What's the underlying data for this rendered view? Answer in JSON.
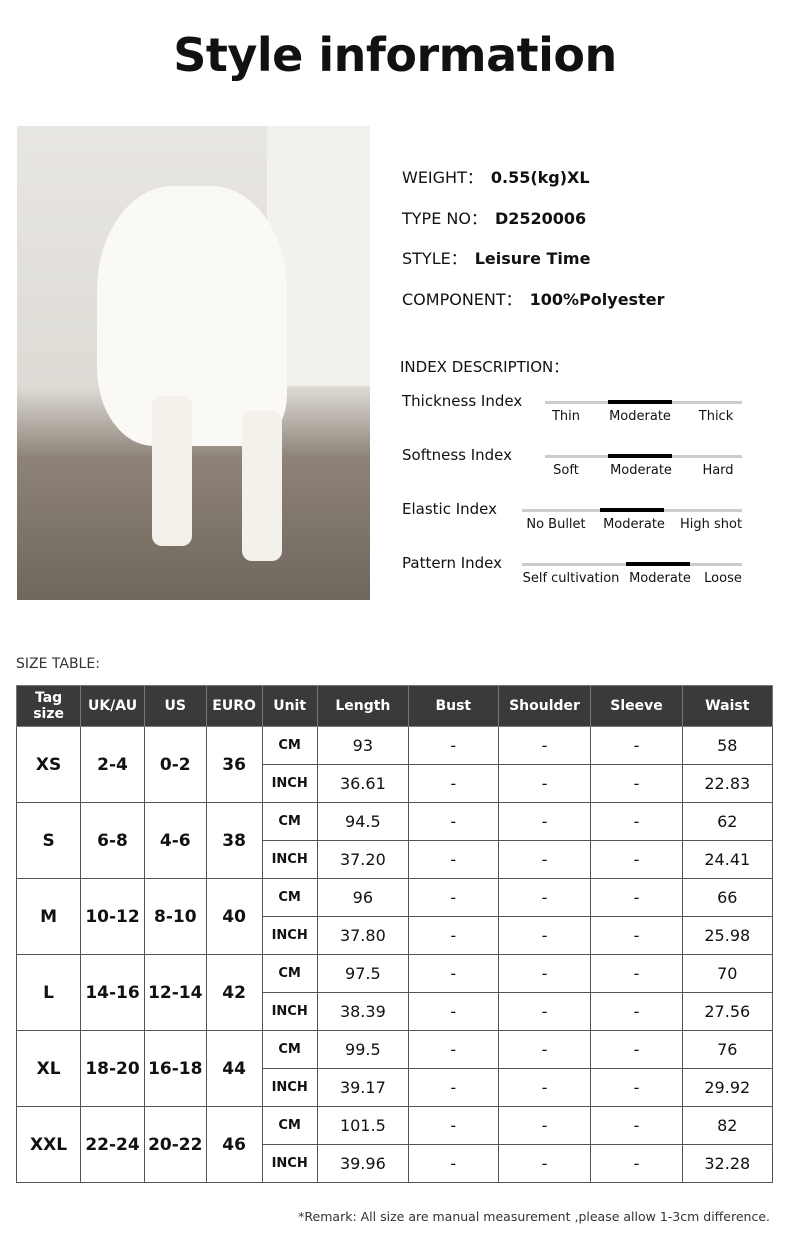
{
  "title": "Style information",
  "info": [
    {
      "label": "WEIGHT：",
      "value": "0.55(kg)XL"
    },
    {
      "label": "TYPE NO：",
      "value": "D2520006"
    },
    {
      "label": "STYLE：",
      "value": "Leisure Time"
    },
    {
      "label": "COMPONENT：",
      "value": "100%Polyester"
    }
  ],
  "index_heading": "INDEX DESCRIPTION：",
  "indexes": [
    {
      "label": "Thickness Index",
      "options": [
        "Thin",
        "Moderate",
        "Thick"
      ],
      "selected": "Moderate"
    },
    {
      "label": "Softness Index",
      "options": [
        "Soft",
        "Moderate",
        "Hard"
      ],
      "selected": "Moderate"
    },
    {
      "label": "Elastic Index",
      "options": [
        "No Bullet",
        "Moderate",
        "High shot"
      ],
      "selected": "Moderate"
    },
    {
      "label": "Pattern Index",
      "options": [
        "Self cultivation",
        "Moderate",
        "Loose"
      ],
      "selected": "Moderate"
    }
  ],
  "size_table_label": "SIZE TABLE:",
  "headers": [
    "Tag size",
    "UK/AU",
    "US",
    "EURO",
    "Unit",
    "Length",
    "Bust",
    "Shoulder",
    "Sleeve",
    "Waist"
  ],
  "rows": [
    {
      "tag": "XS",
      "uk": "2-4",
      "us": "0-2",
      "euro": "36",
      "cm": [
        "CM",
        "93",
        "-",
        "-",
        "-",
        "58"
      ],
      "inch": [
        "INCH",
        "36.61",
        "-",
        "-",
        "-",
        "22.83"
      ]
    },
    {
      "tag": "S",
      "uk": "6-8",
      "us": "4-6",
      "euro": "38",
      "cm": [
        "CM",
        "94.5",
        "-",
        "-",
        "-",
        "62"
      ],
      "inch": [
        "INCH",
        "37.20",
        "-",
        "-",
        "-",
        "24.41"
      ]
    },
    {
      "tag": "M",
      "uk": "10-12",
      "us": "8-10",
      "euro": "40",
      "cm": [
        "CM",
        "96",
        "-",
        "-",
        "-",
        "66"
      ],
      "inch": [
        "INCH",
        "37.80",
        "-",
        "-",
        "-",
        "25.98"
      ]
    },
    {
      "tag": "L",
      "uk": "14-16",
      "us": "12-14",
      "euro": "42",
      "cm": [
        "CM",
        "97.5",
        "-",
        "-",
        "-",
        "70"
      ],
      "inch": [
        "INCH",
        "38.39",
        "-",
        "-",
        "-",
        "27.56"
      ]
    },
    {
      "tag": "XL",
      "uk": "18-20",
      "us": "16-18",
      "euro": "44",
      "cm": [
        "CM",
        "99.5",
        "-",
        "-",
        "-",
        "76"
      ],
      "inch": [
        "INCH",
        "39.17",
        "-",
        "-",
        "-",
        "29.92"
      ]
    },
    {
      "tag": "XXL",
      "uk": "22-24",
      "us": "20-22",
      "euro": "46",
      "cm": [
        "CM",
        "101.5",
        "-",
        "-",
        "-",
        "82"
      ],
      "inch": [
        "INCH",
        "39.96",
        "-",
        "-",
        "-",
        "32.28"
      ]
    }
  ],
  "remark": "*Remark: All size are manual measurement ,please allow 1-3cm difference."
}
